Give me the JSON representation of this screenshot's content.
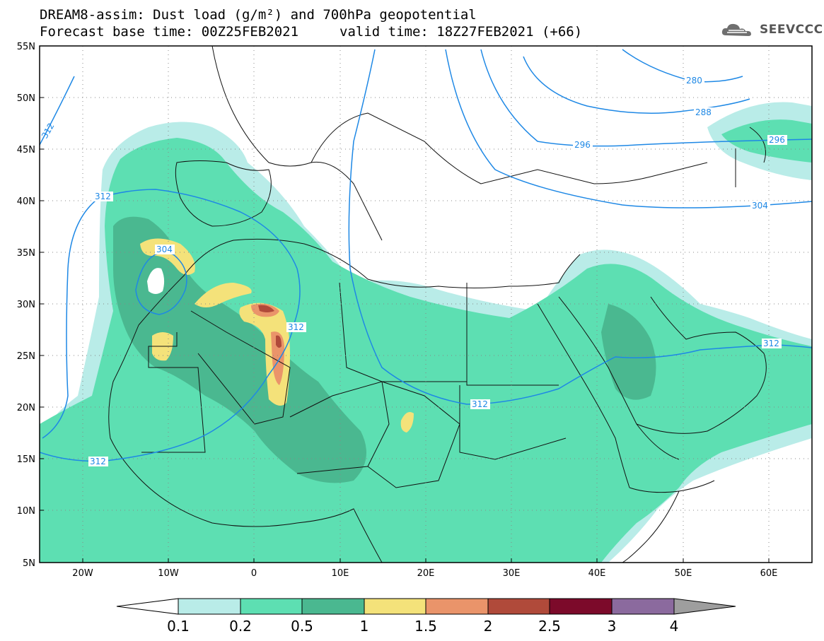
{
  "header": {
    "title_line1": "DREAM8-assim: Dust load (g/m²) and 700hPa geopotential",
    "title_line2_left": "Forecast base time: 00Z25FEB2021",
    "title_line2_right": "valid time: 18Z27FEB2021 (+66)",
    "logo_text": "SEEVCCC"
  },
  "map": {
    "lat_labels": [
      "55N",
      "50N",
      "45N",
      "40N",
      "35N",
      "30N",
      "25N",
      "20N",
      "15N",
      "10N",
      "5N"
    ],
    "lon_labels": [
      "20W",
      "10W",
      "0",
      "10E",
      "20E",
      "30E",
      "40E",
      "50E",
      "60E"
    ],
    "contour_labels": [
      "280",
      "288",
      "296",
      "296",
      "304",
      "304",
      "312",
      "312",
      "312",
      "312",
      "312",
      "312"
    ],
    "contour_color": "#1e88e5"
  },
  "colorbar": {
    "levels": [
      "0.1",
      "0.2",
      "0.5",
      "1",
      "1.5",
      "2",
      "2.5",
      "3",
      "4"
    ],
    "colors": [
      "#b9ece8",
      "#5ddfb2",
      "#4ab890",
      "#f4e27a",
      "#ea946a",
      "#b04a3a",
      "#7c0a2a",
      "#8b6a9e",
      "#9e9e9e"
    ]
  }
}
